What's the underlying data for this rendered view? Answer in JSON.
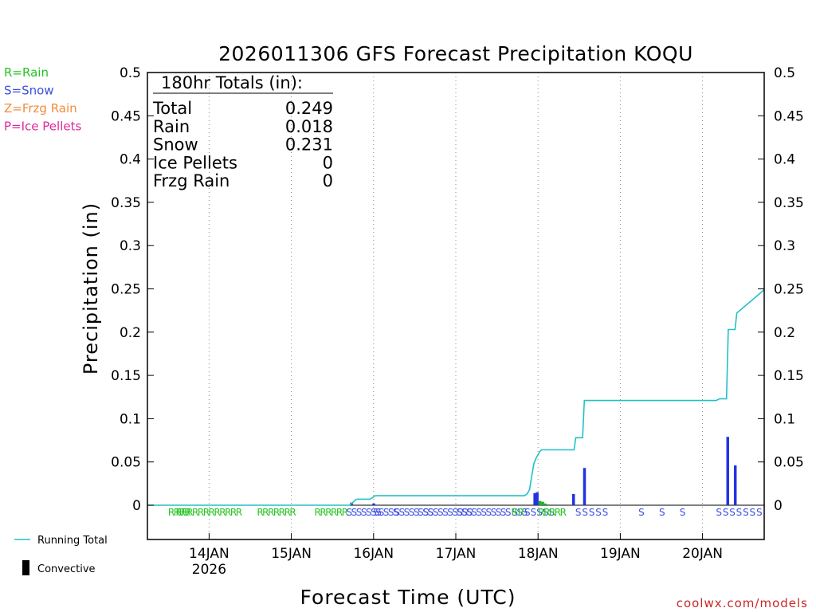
{
  "chart_data": {
    "type": "bar+line",
    "title": "2026011306 GFS Forecast Precipitation KOQU",
    "ylabel": "Precipitation (in)",
    "xlabel": "Forecast Time (UTC)",
    "ylim": [
      -0.04,
      0.5
    ],
    "yticks": [
      0,
      0.05,
      0.1,
      0.15,
      0.2,
      0.25,
      0.3,
      0.35,
      0.4,
      0.45,
      0.5
    ],
    "ytick_labels": [
      "0",
      "0.05",
      "0.1",
      "0.15",
      "0.2",
      "0.25",
      "0.3",
      "0.35",
      "0.4",
      "0.45",
      "0.5"
    ],
    "xlim_hours": [
      6,
      186
    ],
    "xticks": [
      {
        "hour": 24,
        "label": "14JAN",
        "sublabel": "2026"
      },
      {
        "hour": 48,
        "label": "15JAN",
        "sublabel": ""
      },
      {
        "hour": 72,
        "label": "16JAN",
        "sublabel": ""
      },
      {
        "hour": 96,
        "label": "17JAN",
        "sublabel": ""
      },
      {
        "hour": 120,
        "label": "18JAN",
        "sublabel": ""
      },
      {
        "hour": 144,
        "label": "19JAN",
        "sublabel": ""
      },
      {
        "hour": 168,
        "label": "20JAN",
        "sublabel": ""
      }
    ],
    "legend_types": [
      {
        "label": "R=Rain",
        "color": "#22c422"
      },
      {
        "label": "S=Snow",
        "color": "#3b4fe0"
      },
      {
        "label": "Z=Frzg Rain",
        "color": "#f08c3c"
      },
      {
        "label": "P=Ice Pellets",
        "color": "#e0289c"
      }
    ],
    "legend_series": [
      {
        "label": "Running Total",
        "color": "#22c0c8"
      },
      {
        "label": "Convective",
        "color": "#000000"
      }
    ],
    "totals_box": {
      "header": "180hr Totals (in):",
      "rows": [
        {
          "name": "Total",
          "value": "0.249"
        },
        {
          "name": "Rain",
          "value": "0.018"
        },
        {
          "name": "Snow",
          "value": "0.231"
        },
        {
          "name": "Ice Pellets",
          "value": "0"
        },
        {
          "name": "Frzg Rain",
          "value": "0"
        }
      ]
    },
    "running_total": [
      [
        6,
        0
      ],
      [
        65,
        0
      ],
      [
        67,
        0.007
      ],
      [
        71,
        0.007
      ],
      [
        72.5,
        0.011
      ],
      [
        116,
        0.011
      ],
      [
        116.8,
        0.013
      ],
      [
        117.5,
        0.018
      ],
      [
        118.2,
        0.035
      ],
      [
        118.8,
        0.048
      ],
      [
        119.5,
        0.055
      ],
      [
        120.5,
        0.062
      ],
      [
        121,
        0.064
      ],
      [
        130.5,
        0.064
      ],
      [
        131,
        0.078
      ],
      [
        133,
        0.078
      ],
      [
        133.5,
        0.121
      ],
      [
        172,
        0.121
      ],
      [
        173,
        0.123
      ],
      [
        175,
        0.123
      ],
      [
        175.5,
        0.203
      ],
      [
        177.5,
        0.203
      ],
      [
        178,
        0.222
      ],
      [
        186,
        0.249
      ]
    ],
    "snow_bars": [
      {
        "hour": 65.5,
        "value": 0.003
      },
      {
        "hour": 72,
        "value": 0.002
      },
      {
        "hour": 119,
        "value": 0.014
      },
      {
        "hour": 119.7,
        "value": 0.015
      },
      {
        "hour": 130.3,
        "value": 0.013
      },
      {
        "hour": 133.5,
        "value": 0.043
      },
      {
        "hour": 175.3,
        "value": 0.079
      },
      {
        "hour": 177.5,
        "value": 0.046
      }
    ],
    "rain_bars": [
      {
        "hour": 120.5,
        "value": 0.005
      },
      {
        "hour": 121.3,
        "value": 0.004
      },
      {
        "hour": 122,
        "value": 0.002
      },
      {
        "hour": 122.8,
        "value": 0.001
      }
    ],
    "type_markers": [
      {
        "hour": 15.2,
        "text": "RRRR",
        "kind": "rain"
      },
      {
        "hour": 23.8,
        "text": "RRRRRRRRRRRR",
        "kind": "rain"
      },
      {
        "hour": 43.5,
        "text": "RRRRRRR",
        "kind": "rain"
      },
      {
        "hour": 59.5,
        "text": "RRRRRR",
        "kind": "rain"
      },
      {
        "hour": 69.0,
        "text": "SSSSSSS",
        "kind": "snow"
      },
      {
        "hour": 75.5,
        "text": "SSSSS",
        "kind": "snow"
      },
      {
        "hour": 81.5,
        "text": "SSSSS",
        "kind": "snow"
      },
      {
        "hour": 87.0,
        "text": "SSS",
        "kind": "snow"
      },
      {
        "hour": 93.5,
        "text": "SSSSSSSSSS",
        "kind": "snow"
      },
      {
        "hour": 104.0,
        "text": "SSSSSSSSSSS",
        "kind": "snow"
      },
      {
        "hour": 114.5,
        "text": "SSS",
        "kind": "snow"
      },
      {
        "hour": 118.5,
        "text": "RRSSSSS",
        "kind": "mixed"
      },
      {
        "hour": 124.0,
        "text": "RRRRR",
        "kind": "rain"
      },
      {
        "hour": 135.5,
        "text": "S S S S S",
        "kind": "snow"
      },
      {
        "hour": 150.0,
        "text": "S",
        "kind": "snow"
      },
      {
        "hour": 156.0,
        "text": "S",
        "kind": "snow"
      },
      {
        "hour": 162.0,
        "text": "S",
        "kind": "snow"
      },
      {
        "hour": 178.5,
        "text": "S S S S S S S",
        "kind": "snow"
      }
    ],
    "watermark": "coolwx.com/models"
  }
}
